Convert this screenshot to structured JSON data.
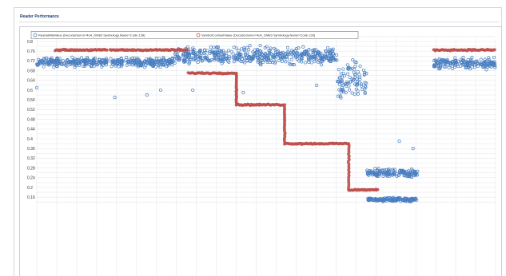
{
  "panel": {
    "title": "Reader Performance"
  },
  "chart_data": {
    "type": "scatter",
    "title": "Reader Performance",
    "xlabel": "",
    "ylabel": "",
    "ylim": [
      0.14,
      0.82
    ],
    "xlim": [
      0,
      1
    ],
    "grid": true,
    "legend_position": "top-left",
    "y_ticks": [
      "0.8",
      "0.76",
      "0.72",
      "0.68",
      "0.64",
      "0.6",
      "0.56",
      "0.52",
      "0.48",
      "0.44",
      "0.4",
      "0.36",
      "0.32",
      "0.28",
      "0.24",
      "0.2",
      "0.16"
    ],
    "series": [
      {
        "name": "ReadabilityValue (DecoderSerno=4cA_DM83 Symbology.Name=Code 128)",
        "color": "#4a7fc1",
        "marker": "circle-open",
        "segments": [
          {
            "x": [
              0.0,
              0.155
            ],
            "y_center": 0.715,
            "spread": 0.025
          },
          {
            "x": [
              0.16,
              0.3
            ],
            "y_center": 0.715,
            "spread": 0.025
          },
          {
            "x": [
              0.3,
              0.655
            ],
            "y_center": 0.74,
            "spread": 0.05
          },
          {
            "x": [
              0.655,
              0.72
            ],
            "y_center": 0.64,
            "spread": 0.1
          },
          {
            "x": [
              0.72,
              0.83
            ],
            "y_center": 0.26,
            "spread": 0.025
          },
          {
            "x": [
              0.72,
              0.83
            ],
            "y_center": 0.15,
            "spread": 0.012
          },
          {
            "x": [
              0.865,
              1.0
            ],
            "y_center": 0.71,
            "spread": 0.03
          }
        ],
        "outliers": [
          [
            0.0,
            0.61
          ],
          [
            0.17,
            0.57
          ],
          [
            0.24,
            0.58
          ],
          [
            0.27,
            0.6
          ],
          [
            0.34,
            0.6
          ],
          [
            0.45,
            0.59
          ],
          [
            0.61,
            0.62
          ],
          [
            0.79,
            0.39
          ],
          [
            0.82,
            0.36
          ]
        ]
      },
      {
        "name": "SymbolContrastValue (DecoderSerno=4cA_DM83 Symbology.Name=Code 128)",
        "color": "#c0504d",
        "marker": "circle",
        "segments": [
          {
            "x": [
              0.04,
              0.155
            ],
            "y_center": 0.765
          },
          {
            "x": [
              0.16,
              0.33
            ],
            "y_center": 0.765
          },
          {
            "x": [
              0.33,
              0.435
            ],
            "y_center": 0.67
          },
          {
            "x": [
              0.435,
              0.54
            ],
            "y_center": 0.54
          },
          {
            "x": [
              0.54,
              0.68
            ],
            "y_center": 0.38
          },
          {
            "x": [
              0.68,
              0.745
            ],
            "y_center": 0.19
          },
          {
            "x": [
              0.865,
              1.0
            ],
            "y_center": 0.765
          }
        ],
        "transitions": [
          {
            "x": 0.435,
            "y_from": 0.67,
            "y_to": 0.54
          },
          {
            "x": 0.54,
            "y_from": 0.54,
            "y_to": 0.38
          },
          {
            "x": 0.68,
            "y_from": 0.38,
            "y_to": 0.19
          }
        ]
      }
    ]
  }
}
